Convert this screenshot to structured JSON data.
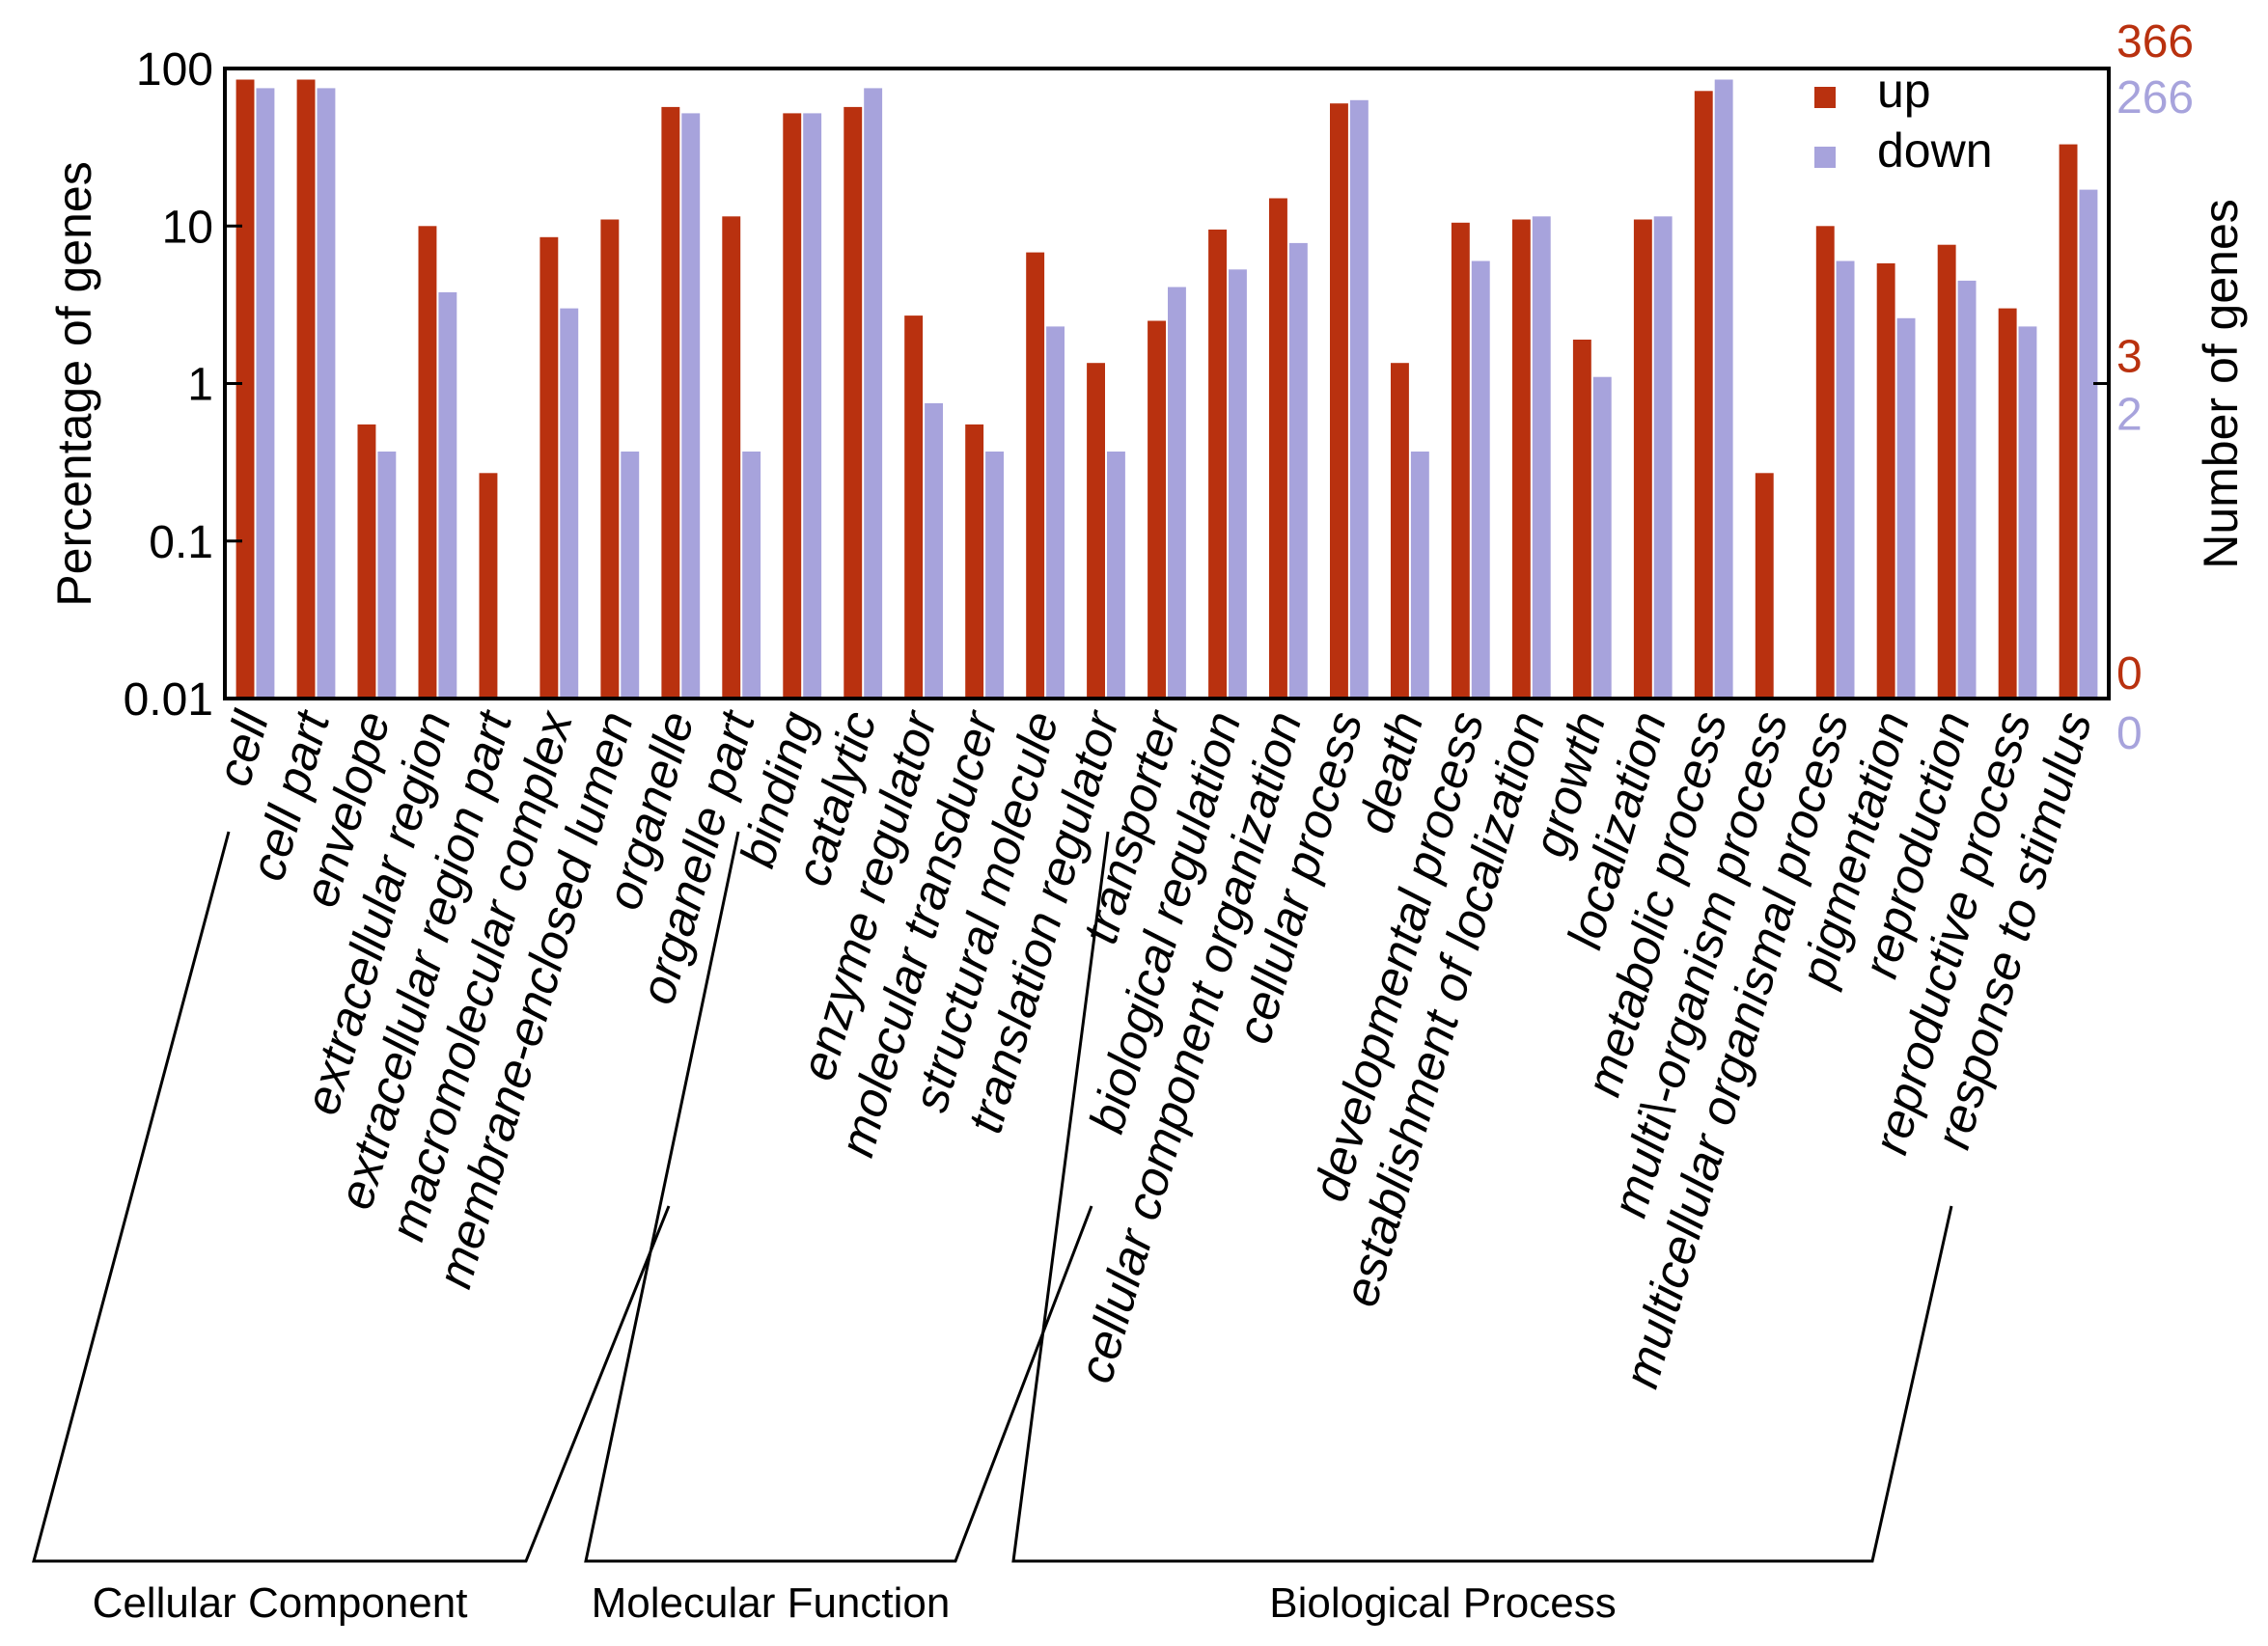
{
  "chart_data": {
    "type": "bar",
    "yscale": "log",
    "ylabel": "Percentage of genes",
    "ylabel_right": "Number of genes",
    "ylim": [
      0.01,
      100
    ],
    "yticks": [
      "100",
      "10",
      "1",
      "0.1",
      "0.01"
    ],
    "right_axis": {
      "up": {
        "top": "366",
        "mid": "3",
        "bottom": "0"
      },
      "down": {
        "top": "266",
        "mid": "2",
        "bottom": "0"
      }
    },
    "categories": [
      "cell",
      "cell part",
      "envelope",
      "extracellular region",
      "extracellular region part",
      "macromolecular complex",
      "membrane-enclosed lumen",
      "organelle",
      "organelle part",
      "binding",
      "catalytic",
      "enzyme regulator",
      "molecular transducer",
      "structural molecule",
      "translation regulator",
      "transporter",
      "biological regulation",
      "cellular component organization",
      "cellular process",
      "death",
      "developmental process",
      "establishment of localization",
      "growth",
      "localization",
      "metabolic process",
      "multi\\-organism process",
      "multicellular organismal process",
      "pigmentation",
      "reproduction",
      "reproductive process",
      "response to stimulus"
    ],
    "series": [
      {
        "name": "up",
        "color": "#b9310f",
        "values": [
          85,
          85,
          0.55,
          10,
          0.27,
          8.5,
          11,
          57,
          11.5,
          52,
          57,
          2.7,
          0.55,
          6.8,
          1.35,
          2.5,
          9.5,
          15,
          60,
          1.35,
          10.5,
          11,
          1.9,
          11,
          72,
          0.27,
          10,
          5.8,
          7.6,
          3,
          33
        ]
      },
      {
        "name": "down",
        "color": "#a7a3dc",
        "values": [
          75,
          75,
          0.37,
          3.8,
          0,
          3,
          0.37,
          52,
          0.37,
          52,
          75,
          0.75,
          0.37,
          2.3,
          0.37,
          4.1,
          5.3,
          7.8,
          63,
          0.37,
          6,
          11.5,
          1.1,
          11.5,
          85,
          0,
          6,
          2.6,
          4.5,
          2.3,
          17
        ]
      }
    ],
    "legend": {
      "position": "top-right",
      "entries": [
        "up",
        "down"
      ]
    },
    "groups": [
      {
        "label": "Cellular Component",
        "start": 0,
        "end": 8
      },
      {
        "label": "Molecular Function",
        "start": 9,
        "end": 15
      },
      {
        "label": "Biological Process",
        "start": 16,
        "end": 30
      }
    ]
  }
}
